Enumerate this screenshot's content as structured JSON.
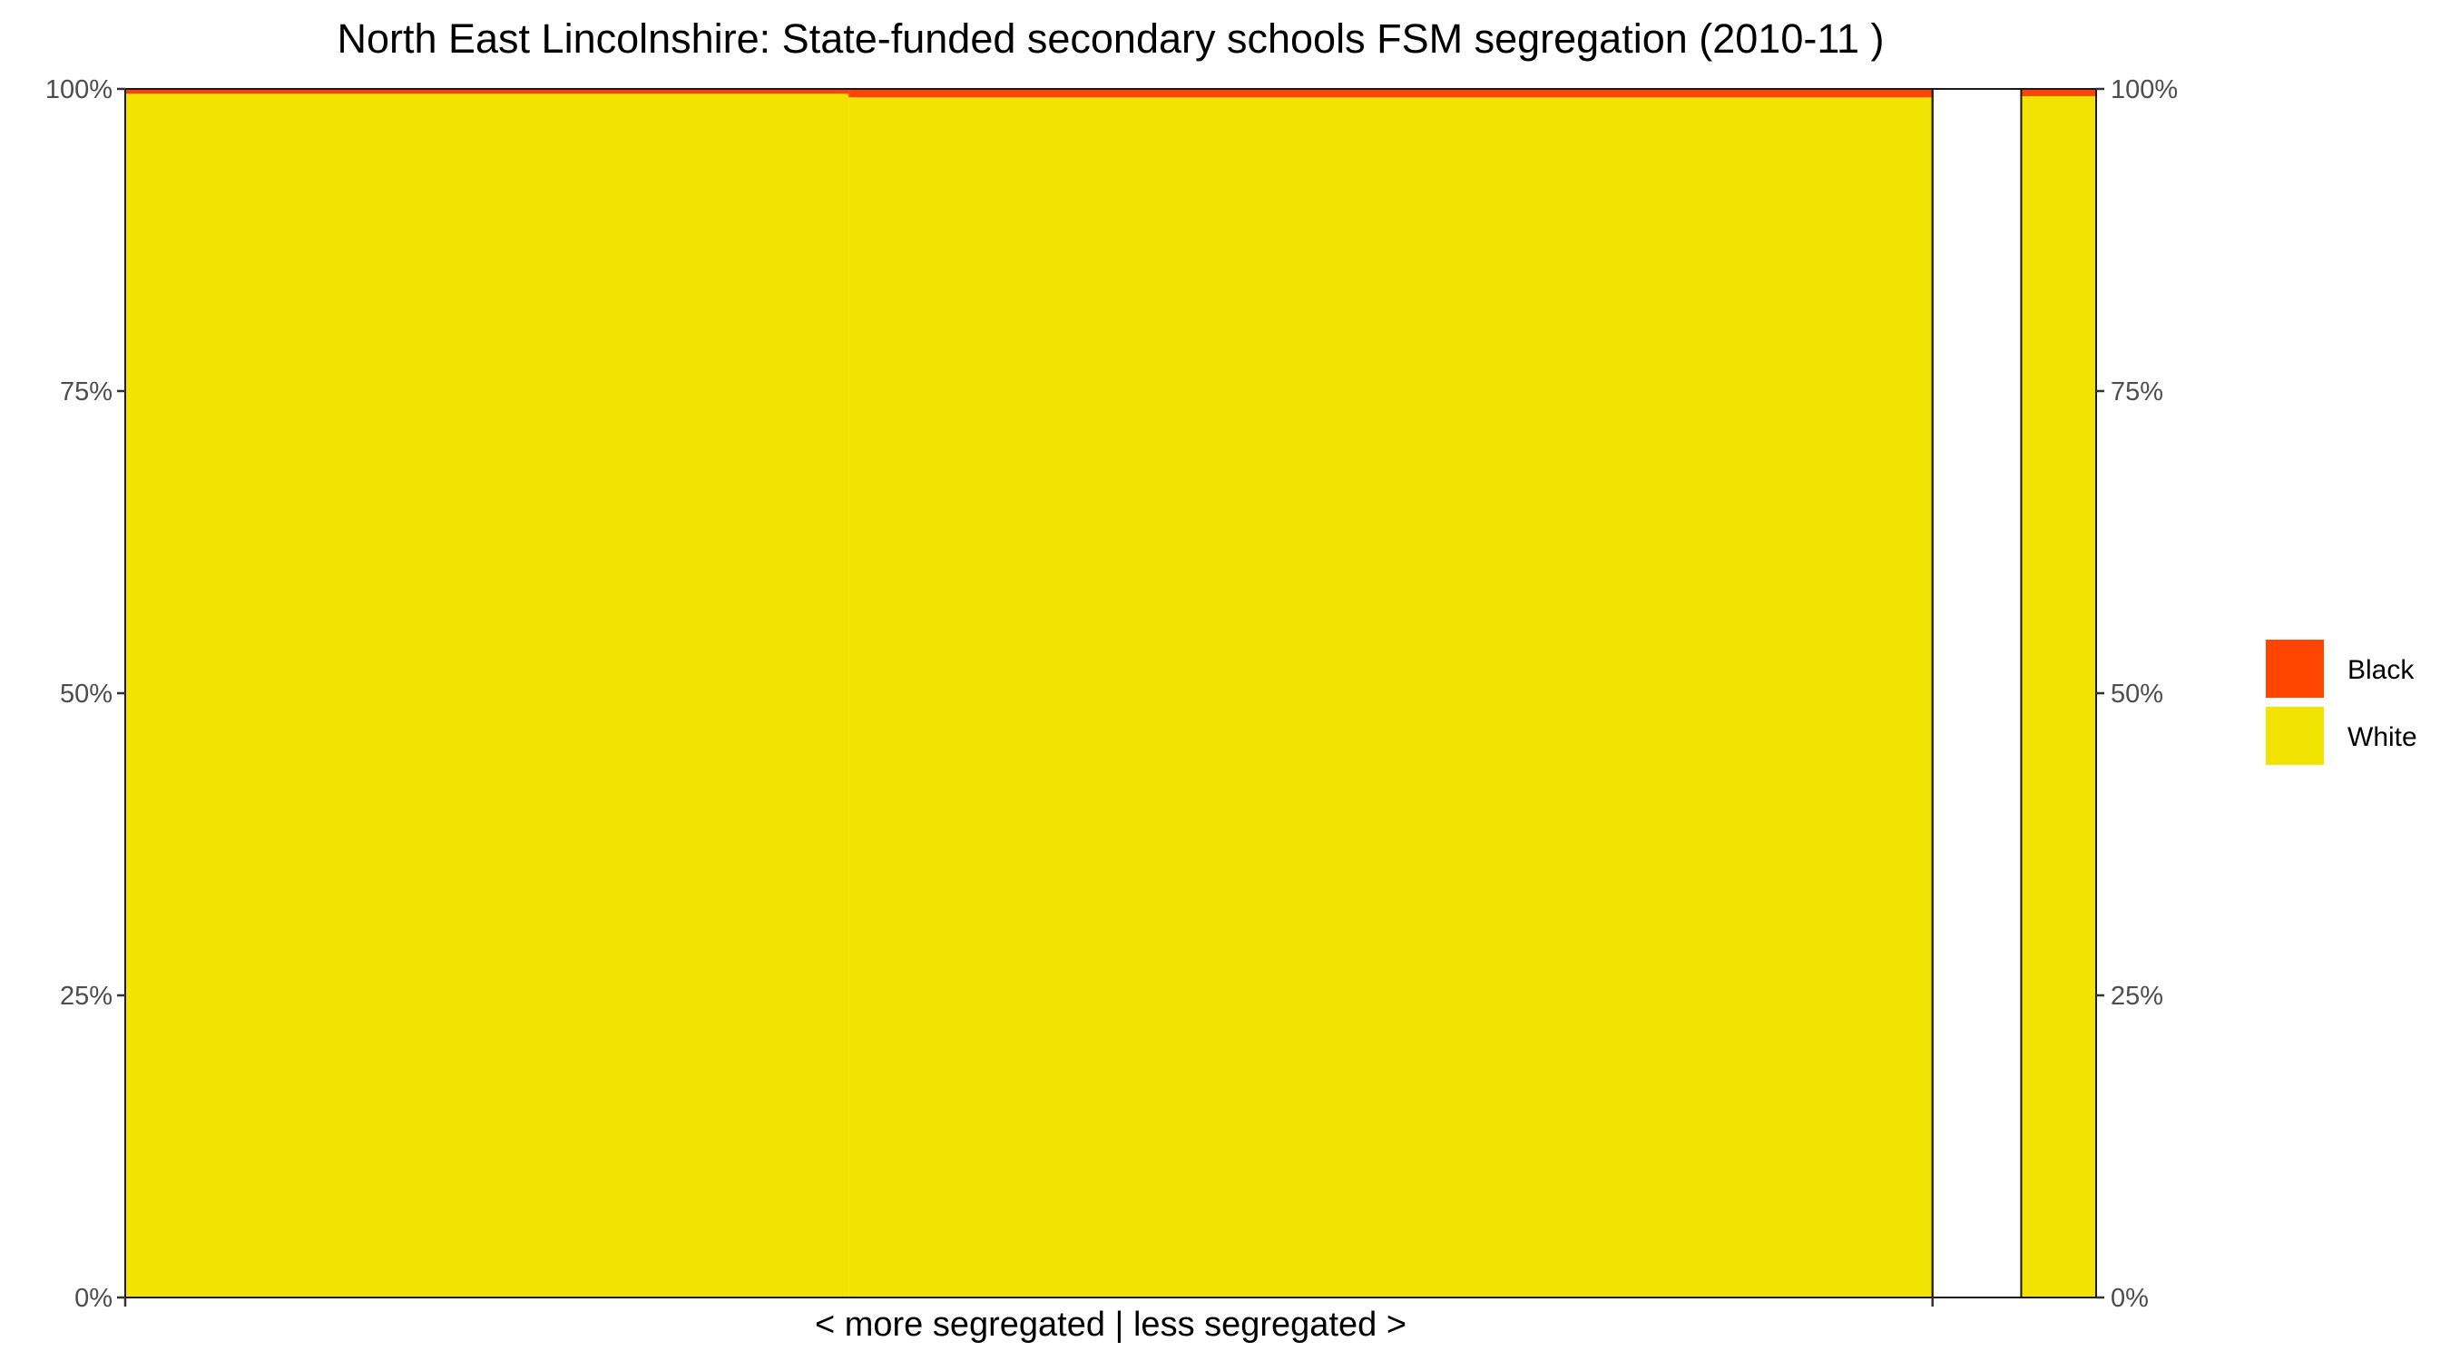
{
  "chart_data": {
    "type": "bar",
    "title": "North East Lincolnshire: State-funded secondary schools FSM segregation (2010-11 )",
    "xlabel": "< more segregated | less segregated >",
    "ylabel": "",
    "ylim": [
      0,
      1
    ],
    "y_ticks": [
      0,
      0.25,
      0.5,
      0.75,
      1
    ],
    "y_tick_labels": [
      "0%",
      "25%",
      "50%",
      "75%",
      "100%"
    ],
    "grid": false,
    "legend_position": "right",
    "colors": {
      "Black": "#FF4500",
      "White": "#F2E400"
    },
    "groups": [
      {
        "x_start": 0.0,
        "x_end": 0.917,
        "segments": [
          {
            "x_start": 0.0,
            "x_end": 0.367,
            "Black": 0.004,
            "White": 0.996
          },
          {
            "x_start": 0.367,
            "x_end": 0.917,
            "Black": 0.007,
            "White": 0.993
          }
        ]
      },
      {
        "x_start": 0.917,
        "x_end": 0.962,
        "segments": []
      },
      {
        "x_start": 0.962,
        "x_end": 1.0,
        "segments": [
          {
            "x_start": 0.962,
            "x_end": 1.0,
            "Black": 0.006,
            "White": 0.994
          }
        ]
      }
    ],
    "x_tick_positions": [
      0.0,
      0.917
    ],
    "series": [
      {
        "name": "Black"
      },
      {
        "name": "White"
      }
    ]
  }
}
